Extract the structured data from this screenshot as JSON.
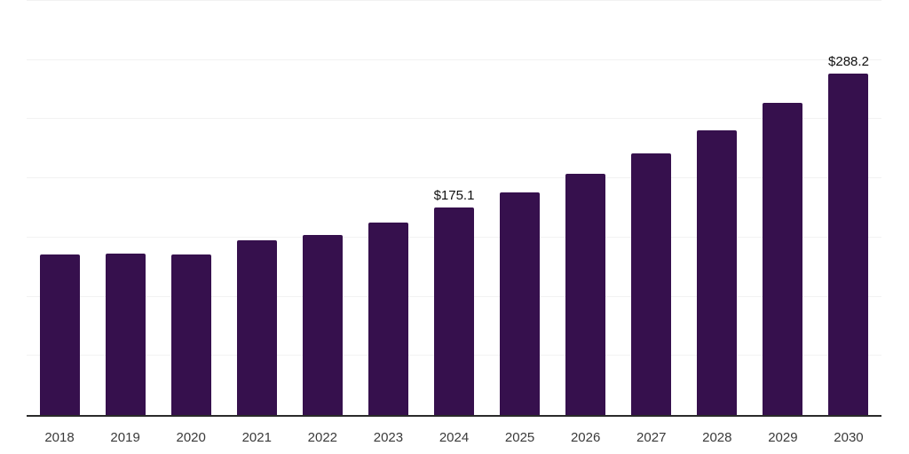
{
  "chart_data": {
    "type": "bar",
    "title": "",
    "xlabel": "",
    "ylabel": "",
    "categories": [
      "2018",
      "2019",
      "2020",
      "2021",
      "2022",
      "2023",
      "2024",
      "2025",
      "2026",
      "2027",
      "2028",
      "2029",
      "2030"
    ],
    "values": [
      135.7,
      136.4,
      135.8,
      147.4,
      151.9,
      162.3,
      175.1,
      188.4,
      204.0,
      221.4,
      240.8,
      263.6,
      288.2
    ],
    "data_labels": [
      "",
      "",
      "",
      "",
      "",
      "",
      "$175.1",
      "",
      "",
      "",
      "",
      "",
      "$288.2"
    ],
    "ylim": [
      0,
      350
    ],
    "gridline_step": 50,
    "grid": "horizontal",
    "legend_position": "none",
    "colors": {
      "bar": "#36104d",
      "axis_line": "#2a2a2a",
      "gridline": "#f2f2f2",
      "tick_label": "#3a3a3a",
      "data_label": "#111111",
      "background": "#ffffff"
    }
  }
}
